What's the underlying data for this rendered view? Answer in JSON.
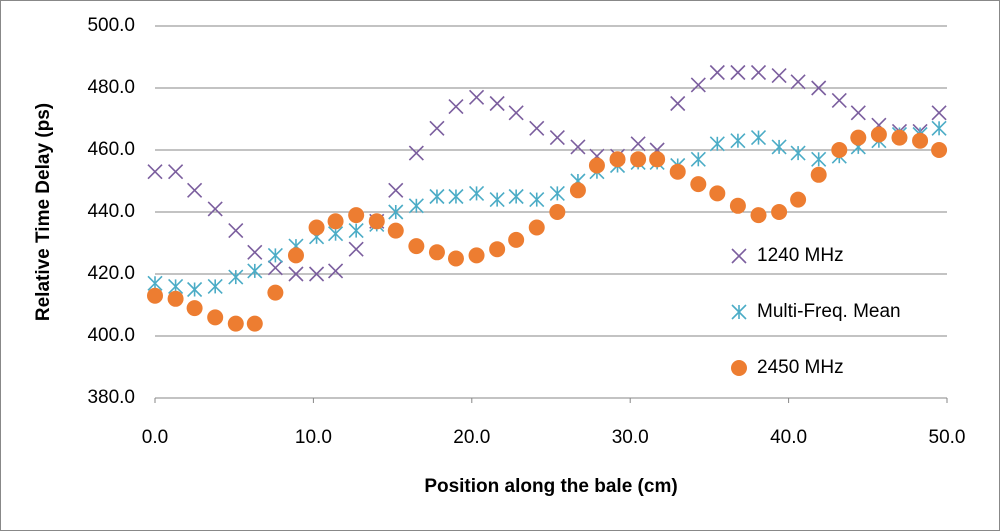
{
  "chart_data": {
    "type": "scatter",
    "x_label": "Position along the bale (cm)",
    "y_label": "Relative Time Delay (ps)",
    "x": [
      0,
      1.3,
      2.5,
      3.8,
      5.1,
      6.3,
      7.6,
      8.9,
      10.2,
      11.4,
      12.7,
      14.0,
      15.2,
      16.5,
      17.8,
      19.0,
      20.3,
      21.6,
      22.8,
      24.1,
      25.4,
      26.7,
      27.9,
      29.2,
      30.5,
      31.7,
      33.0,
      34.3,
      35.5,
      36.8,
      38.1,
      39.4,
      40.6,
      41.9,
      43.2,
      44.4,
      45.7,
      47.0,
      48.3,
      49.5
    ],
    "series": [
      {
        "name": "1240 MHz",
        "color": "#7b5e9e",
        "marker": "x",
        "values": [
          453,
          453,
          447,
          441,
          434,
          427,
          422,
          420,
          420,
          421,
          428,
          437,
          447,
          459,
          467,
          474,
          477,
          475,
          472,
          467,
          464,
          461,
          458,
          458,
          462,
          460,
          475,
          481,
          485,
          485,
          485,
          484,
          482,
          480,
          476,
          472,
          468,
          466,
          466,
          472
        ]
      },
      {
        "name": "Multi-Freq. Mean",
        "color": "#4bacc6",
        "marker": "asterisk",
        "values": [
          417,
          416,
          415,
          416,
          419,
          421,
          426,
          429,
          432,
          433,
          434,
          436,
          440,
          442,
          445,
          445,
          446,
          444,
          445,
          444,
          446,
          450,
          453,
          455,
          456,
          456,
          455,
          457,
          462,
          463,
          464,
          461,
          459,
          457,
          458,
          461,
          463,
          465,
          465,
          467
        ]
      },
      {
        "name": "2450 MHz",
        "color": "#ed7d31",
        "marker": "circle",
        "values": [
          413,
          412,
          409,
          406,
          404,
          404,
          414,
          426,
          435,
          437,
          439,
          437,
          434,
          429,
          427,
          425,
          426,
          428,
          431,
          435,
          440,
          447,
          455,
          457,
          457,
          457,
          453,
          449,
          446,
          442,
          439,
          440,
          444,
          452,
          460,
          464,
          465,
          464,
          463,
          460
        ]
      }
    ],
    "xlim": [
      0,
      50
    ],
    "xticks": [
      {
        "value": 0,
        "label": "0.0"
      },
      {
        "value": 10,
        "label": "10.0"
      },
      {
        "value": 20,
        "label": "20.0"
      },
      {
        "value": 30,
        "label": "30.0"
      },
      {
        "value": 40,
        "label": "40.0"
      },
      {
        "value": 50,
        "label": "50.0"
      }
    ],
    "ylim": [
      380,
      500
    ],
    "yticks": [
      {
        "value": 380,
        "label": "380.0"
      },
      {
        "value": 400,
        "label": "400.0"
      },
      {
        "value": 420,
        "label": "420.0"
      },
      {
        "value": 440,
        "label": "440.0"
      },
      {
        "value": 460,
        "label": "460.0"
      },
      {
        "value": 480,
        "label": "480.0"
      },
      {
        "value": 500,
        "label": "500.0"
      }
    ],
    "grid": true,
    "legend": "right"
  }
}
